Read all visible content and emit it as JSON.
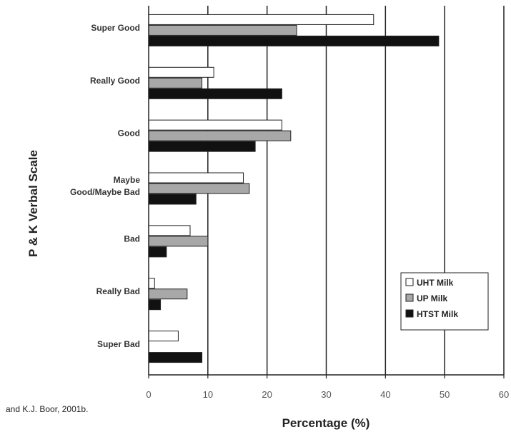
{
  "caption": "and K.J. Boor, 2001b.",
  "chart_data": {
    "type": "bar",
    "orientation": "horizontal",
    "categories": [
      "Super Good",
      "Really Good",
      "Good",
      "Maybe Good/Maybe Bad",
      "Bad",
      "Really Bad",
      "Super Bad"
    ],
    "category_lines": [
      [
        "Super Good"
      ],
      [
        "Really Good"
      ],
      [
        "Good"
      ],
      [
        "Maybe",
        "Good/Maybe Bad"
      ],
      [
        "Bad"
      ],
      [
        "Really Bad"
      ],
      [
        "Super Bad"
      ]
    ],
    "series": [
      {
        "name": "UHT Milk",
        "color": "#ffffff",
        "values": [
          38,
          11,
          22.5,
          16,
          7,
          1,
          5
        ]
      },
      {
        "name": "UP Milk",
        "color": "#a8a8a8",
        "values": [
          25,
          9,
          24,
          17,
          10,
          6.5,
          0
        ]
      },
      {
        "name": "HTST Milk",
        "color": "#111111",
        "values": [
          49,
          22.5,
          18,
          8,
          3,
          2,
          9
        ]
      }
    ],
    "xlabel": "Percentage (%)",
    "ylabel": "P & K Verbal Scale",
    "xlim": [
      0,
      60
    ],
    "xticks": [
      "0",
      "10",
      "20",
      "30",
      "40",
      "50",
      "60"
    ],
    "grid": true,
    "legend_position": "bottom-right"
  }
}
